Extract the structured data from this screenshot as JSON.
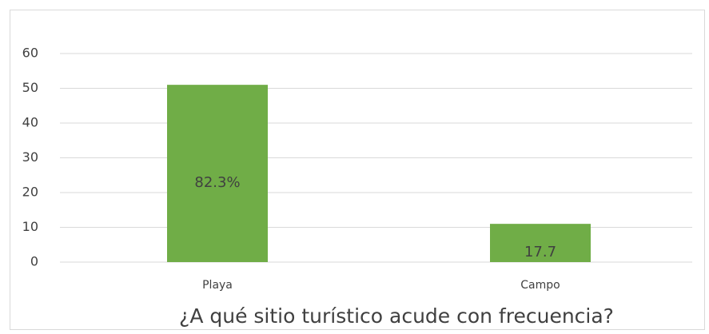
{
  "chart_data": {
    "type": "bar",
    "title": "¿A qué sitio turístico acude con frecuencia?",
    "categories": [
      "Playa",
      "Campo"
    ],
    "values": [
      51,
      11
    ],
    "color": "#70ad47",
    "annotations": [
      "82.3%",
      "17.7"
    ],
    "ylim": [
      0,
      60
    ],
    "yticks": [
      0,
      10,
      20,
      30,
      40,
      50,
      60
    ],
    "grid": true
  }
}
